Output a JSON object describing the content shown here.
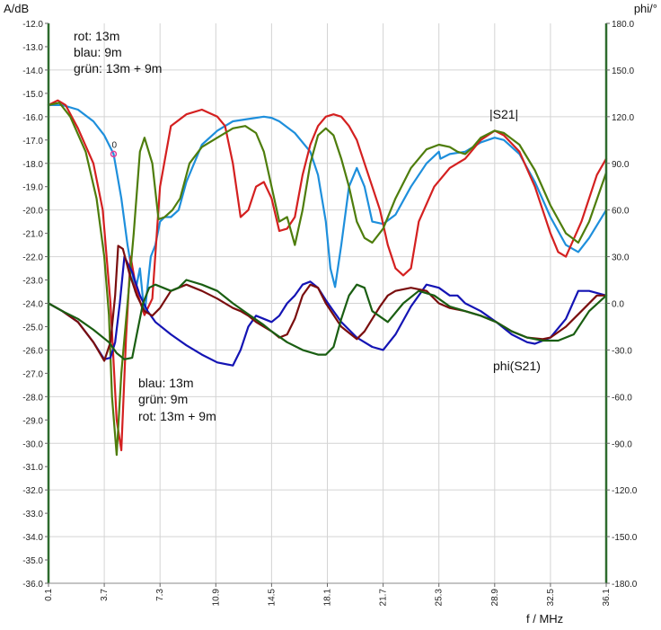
{
  "chart_data": {
    "type": "line",
    "y_left_label": "A/dB",
    "y_right_label": "phi/°",
    "x_label": "f / MHz",
    "xlim": [
      0.1,
      36.1
    ],
    "ylim_left": [
      -36,
      -12
    ],
    "ylim_right": [
      -180,
      180
    ],
    "x_ticks": [
      "0.1",
      "3.7",
      "7.3",
      "10.9",
      "14.5",
      "18.1",
      "21.7",
      "25.3",
      "28.9",
      "32.5",
      "36.1"
    ],
    "y_left_ticks": [
      "-12.0",
      "-13.0",
      "-14.0",
      "-15.0",
      "-16.0",
      "-17.0",
      "-18.0",
      "-19.0",
      "-20.0",
      "-21.0",
      "-22.0",
      "-23.0",
      "-24.0",
      "-25.0",
      "-26.0",
      "-27.0",
      "-28.0",
      "-29.0",
      "-30.0",
      "-31.0",
      "-32.0",
      "-33.0",
      "-34.0",
      "-35.0",
      "-36.0"
    ],
    "y_right_ticks": [
      "180.0",
      "150.0",
      "120.0",
      "90.0",
      "60.0",
      "30.0",
      "0.0",
      "-30.0",
      "-60.0",
      "-90.0",
      "-120.0",
      "-150.0",
      "-180.0"
    ],
    "grid": true,
    "annotations": {
      "legend_mag": [
        "rot: 13m",
        "blau: 9m",
        "grün: 13m + 9m"
      ],
      "legend_phase": [
        "blau: 13m",
        "grün: 9m",
        "rot: 13m + 9m"
      ],
      "label_mag": "|S21|",
      "label_phase": "phi(S21)",
      "marker_label": "0",
      "marker": {
        "x": 4.3,
        "y": -17.6
      }
    },
    "series": [
      {
        "axis": "left",
        "color": "#1e8fdc",
        "x": [
          0.1,
          1.0,
          2.0,
          3.0,
          3.7,
          4.3,
          4.8,
          5.2,
          5.7,
          6.0,
          6.3,
          6.7,
          7.0,
          7.3,
          7.6,
          8.0,
          8.5,
          9.0,
          10.0,
          11.0,
          12.0,
          13.0,
          14.0,
          14.5,
          15.0,
          16.0,
          17.0,
          17.5,
          18.0,
          18.3,
          18.6,
          19.0,
          19.5,
          20.0,
          20.5,
          21.0,
          21.7,
          22.5,
          23.5,
          24.5,
          25.3,
          25.4,
          26.0,
          27.0,
          28.0,
          28.9,
          29.5,
          30.5,
          31.5,
          32.5,
          33.5,
          34.3,
          35.0,
          36.1
        ],
        "y": [
          -15.5,
          -15.5,
          -15.7,
          -16.2,
          -16.8,
          -17.6,
          -19.5,
          -21.5,
          -23.5,
          -22.5,
          -24.5,
          -22.0,
          -21.5,
          -20.5,
          -20.3,
          -20.3,
          -20.0,
          -18.8,
          -17.2,
          -16.6,
          -16.2,
          -16.1,
          -16.0,
          -16.05,
          -16.2,
          -16.7,
          -17.5,
          -18.5,
          -20.5,
          -22.5,
          -23.3,
          -21.5,
          -19.0,
          -18.2,
          -19.0,
          -20.5,
          -20.6,
          -20.2,
          -19.0,
          -18.0,
          -17.5,
          -17.8,
          -17.6,
          -17.5,
          -17.1,
          -16.9,
          -17.0,
          -17.6,
          -18.8,
          -20.3,
          -21.5,
          -21.8,
          -21.2,
          -20.0
        ]
      },
      {
        "axis": "left",
        "color": "#d42020",
        "x": [
          0.1,
          0.7,
          1.2,
          2.0,
          3.0,
          3.6,
          4.1,
          4.5,
          4.8,
          5.1,
          5.4,
          5.8,
          6.3,
          6.8,
          7.3,
          8.0,
          9.0,
          10.0,
          11.0,
          11.5,
          12.0,
          12.5,
          13.0,
          13.5,
          14.0,
          14.5,
          15.0,
          15.5,
          16.0,
          16.5,
          17.0,
          17.5,
          18.0,
          18.5,
          19.0,
          19.5,
          20.0,
          20.5,
          21.0,
          21.5,
          22.0,
          22.5,
          23.0,
          23.5,
          24.0,
          25.0,
          26.0,
          27.0,
          28.0,
          28.9,
          29.5,
          30.5,
          31.5,
          32.5,
          33.0,
          33.5,
          34.5,
          35.5,
          36.1
        ],
        "y": [
          -15.5,
          -15.3,
          -15.5,
          -16.5,
          -18.0,
          -20.0,
          -24.0,
          -29.0,
          -30.3,
          -25.5,
          -22.0,
          -23.5,
          -24.5,
          -23.8,
          -19.0,
          -16.4,
          -15.9,
          -15.7,
          -16.0,
          -16.4,
          -18.0,
          -20.3,
          -20.0,
          -19.0,
          -18.8,
          -19.5,
          -20.9,
          -20.8,
          -20.3,
          -18.5,
          -17.2,
          -16.4,
          -16.0,
          -15.9,
          -16.0,
          -16.4,
          -17.0,
          -18.0,
          -19.0,
          -20.0,
          -21.5,
          -22.5,
          -22.8,
          -22.5,
          -20.5,
          -19.0,
          -18.2,
          -17.8,
          -17.0,
          -16.6,
          -16.8,
          -17.5,
          -19.0,
          -21.0,
          -21.8,
          -22.0,
          -20.5,
          -18.5,
          -17.8
        ]
      },
      {
        "axis": "left",
        "color": "#4e7d0c",
        "x": [
          0.1,
          0.8,
          1.5,
          2.5,
          3.2,
          3.7,
          4.0,
          4.2,
          4.5,
          4.8,
          5.2,
          5.6,
          6.0,
          6.3,
          6.8,
          7.2,
          7.6,
          8.1,
          8.6,
          9.2,
          10.0,
          11.0,
          12.0,
          12.8,
          13.5,
          14.0,
          14.5,
          15.0,
          15.5,
          16.0,
          16.5,
          17.0,
          17.5,
          18.0,
          18.5,
          19.0,
          19.5,
          20.0,
          20.5,
          21.0,
          21.7,
          22.5,
          23.5,
          24.5,
          25.3,
          26.0,
          26.5,
          27.0,
          27.5,
          28.0,
          28.9,
          29.5,
          30.5,
          31.5,
          32.5,
          33.5,
          34.3,
          35.0,
          36.1
        ],
        "y": [
          -15.5,
          -15.4,
          -16.0,
          -17.5,
          -19.5,
          -22.0,
          -24.5,
          -28.0,
          -30.5,
          -27.0,
          -24.0,
          -21.0,
          -17.5,
          -16.9,
          -18.0,
          -20.4,
          -20.3,
          -20.0,
          -19.5,
          -18.0,
          -17.3,
          -16.9,
          -16.5,
          -16.4,
          -16.7,
          -17.5,
          -19.0,
          -20.5,
          -20.3,
          -21.5,
          -20.0,
          -18.0,
          -16.8,
          -16.5,
          -16.8,
          -17.8,
          -19.0,
          -20.5,
          -21.2,
          -21.4,
          -20.8,
          -19.5,
          -18.2,
          -17.4,
          -17.2,
          -17.3,
          -17.5,
          -17.6,
          -17.3,
          -16.9,
          -16.6,
          -16.7,
          -17.2,
          -18.3,
          -19.8,
          -21.0,
          -21.4,
          -20.5,
          -18.4
        ]
      },
      {
        "axis": "right",
        "color": "#1414b4",
        "x": [
          0.1,
          1.0,
          2.0,
          3.0,
          3.7,
          4.1,
          4.4,
          4.7,
          5.0,
          5.5,
          6.0,
          6.5,
          7.0,
          8.0,
          9.0,
          10.0,
          11.0,
          12.0,
          12.5,
          13.0,
          13.5,
          14.0,
          14.5,
          15.0,
          15.5,
          16.0,
          16.5,
          17.0,
          17.5,
          18.0,
          18.5,
          19.0,
          20.0,
          21.0,
          21.7,
          22.5,
          23.5,
          24.5,
          25.3,
          26.0,
          26.5,
          27.0,
          28.0,
          29.0,
          30.0,
          31.0,
          31.5,
          32.5,
          33.5,
          34.3,
          35.0,
          36.1
        ],
        "y": [
          0,
          -5,
          -12,
          -25,
          -36,
          -35,
          -25,
          0,
          30,
          20,
          5,
          -5,
          -12,
          -20,
          -27,
          -33,
          -38,
          -40,
          -30,
          -15,
          -8,
          -10,
          -12,
          -8,
          0,
          5,
          12,
          14,
          10,
          2,
          -5,
          -12,
          -22,
          -28,
          -30,
          -20,
          -2,
          12,
          10,
          5,
          5,
          0,
          -5,
          -12,
          -20,
          -25,
          -26,
          -22,
          -10,
          8,
          8,
          5
        ]
      },
      {
        "axis": "right",
        "color": "#7a0e0e",
        "x": [
          0.1,
          1.0,
          2.0,
          3.0,
          3.7,
          4.1,
          4.4,
          4.6,
          4.9,
          5.3,
          5.8,
          6.3,
          6.8,
          7.3,
          8.0,
          9.0,
          10.0,
          11.0,
          12.0,
          12.5,
          13.0,
          13.5,
          14.0,
          14.5,
          15.0,
          15.5,
          16.0,
          16.5,
          17.0,
          17.5,
          18.0,
          19.0,
          20.0,
          20.5,
          21.0,
          21.5,
          22.0,
          22.5,
          23.5,
          24.5,
          25.3,
          26.0,
          27.0,
          28.0,
          29.0,
          30.0,
          31.0,
          32.0,
          32.5,
          33.5,
          34.5,
          35.5,
          36.1
        ],
        "y": [
          0,
          -5,
          -12,
          -25,
          -37,
          -25,
          5,
          37,
          35,
          20,
          5,
          -5,
          -8,
          -3,
          8,
          12,
          8,
          3,
          -3,
          -5,
          -8,
          -12,
          -15,
          -18,
          -22,
          -20,
          -10,
          5,
          12,
          10,
          0,
          -15,
          -23,
          -18,
          -10,
          -2,
          5,
          8,
          10,
          8,
          0,
          -3,
          -5,
          -8,
          -12,
          -18,
          -22,
          -23,
          -22,
          -15,
          -5,
          5,
          5
        ]
      },
      {
        "axis": "right",
        "color": "#1a5e12",
        "x": [
          0.1,
          1.0,
          2.0,
          3.0,
          4.0,
          4.5,
          5.0,
          5.5,
          5.8,
          6.2,
          6.6,
          7.0,
          7.5,
          8.0,
          8.5,
          9.0,
          10.0,
          11.0,
          12.0,
          13.0,
          14.0,
          14.5,
          15.5,
          16.5,
          17.5,
          18.0,
          18.5,
          19.0,
          19.5,
          20.0,
          20.5,
          21.0,
          22.0,
          23.0,
          24.0,
          25.0,
          26.0,
          27.0,
          28.0,
          29.0,
          30.0,
          31.0,
          32.0,
          33.0,
          34.0,
          35.0,
          36.1
        ],
        "y": [
          0,
          -5,
          -10,
          -17,
          -25,
          -32,
          -36,
          -35,
          -20,
          0,
          10,
          12,
          10,
          8,
          10,
          15,
          12,
          8,
          0,
          -7,
          -14,
          -18,
          -25,
          -30,
          -33,
          -33,
          -28,
          -10,
          5,
          12,
          10,
          -5,
          -12,
          0,
          8,
          5,
          -2,
          -5,
          -8,
          -12,
          -18,
          -22,
          -24,
          -24,
          -20,
          -5,
          5
        ]
      }
    ]
  }
}
